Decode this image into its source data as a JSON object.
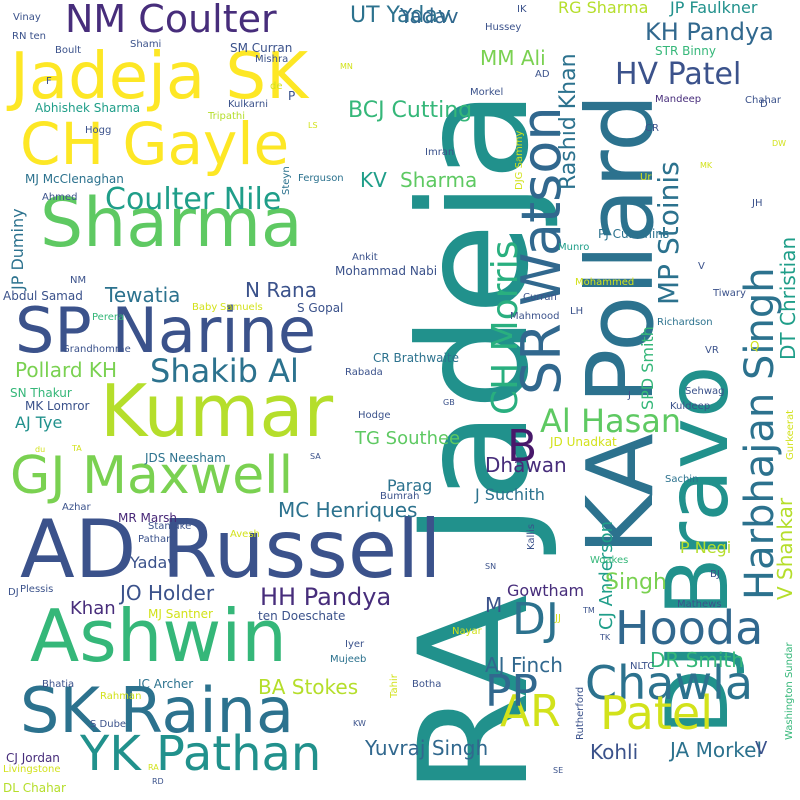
{
  "words": [
    {
      "text": "RA Jadeja",
      "size": 150,
      "color": "#21918c",
      "vertical": true
    },
    {
      "text": "KA Pollard",
      "size": 92,
      "color": "#2c728e",
      "vertical": true
    },
    {
      "text": "DJ Bravo",
      "size": 86,
      "color": "#21918c",
      "vertical": true
    },
    {
      "text": "AD Russell",
      "size": 80,
      "color": "#3b528b",
      "vertical": false
    },
    {
      "text": "Ashwin",
      "size": 72,
      "color": "#35b779",
      "vertical": false
    },
    {
      "text": "Kumar",
      "size": 72,
      "color": "#b5de2b",
      "vertical": false
    },
    {
      "text": "Sharma",
      "size": 68,
      "color": "#5ec962",
      "vertical": false
    },
    {
      "text": "Jadeja SK",
      "size": 64,
      "color": "#fde725",
      "vertical": false
    },
    {
      "text": "SP Narine",
      "size": 62,
      "color": "#3b528b",
      "vertical": false
    },
    {
      "text": "SK Raina",
      "size": 62,
      "color": "#2c728e",
      "vertical": false
    },
    {
      "text": "CH Gayle",
      "size": 58,
      "color": "#fde725",
      "vertical": false
    },
    {
      "text": "GJ Maxwell",
      "size": 52,
      "color": "#7ad151",
      "vertical": false
    },
    {
      "text": "SR Watson",
      "size": 54,
      "color": "#31688e",
      "vertical": true
    },
    {
      "text": "Harbhajan Singh",
      "size": 40,
      "color": "#2c728e",
      "vertical": true
    },
    {
      "text": "YK Pathan",
      "size": 48,
      "color": "#21918c",
      "vertical": false
    },
    {
      "text": "Chawla",
      "size": 46,
      "color": "#2c728e",
      "vertical": false
    },
    {
      "text": "Hooda",
      "size": 46,
      "color": "#31688e",
      "vertical": false
    },
    {
      "text": "Patel",
      "size": 46,
      "color": "#d2e21b",
      "vertical": false
    },
    {
      "text": "AR",
      "size": 44,
      "color": "#d2e21b",
      "vertical": false
    },
    {
      "text": "PP",
      "size": 44,
      "color": "#31688e",
      "vertical": false
    },
    {
      "text": "DJ",
      "size": 44,
      "color": "#2c728e",
      "vertical": false
    },
    {
      "text": "B",
      "size": 44,
      "color": "#48186a",
      "vertical": false
    },
    {
      "text": "NM Coulter",
      "size": 38,
      "color": "#472d7b",
      "vertical": false
    },
    {
      "text": "CH Morris",
      "size": 36,
      "color": "#29af7f",
      "vertical": true
    },
    {
      "text": "Shakib Al",
      "size": 32,
      "color": "#2c728e",
      "vertical": false
    },
    {
      "text": "Al Hasan",
      "size": 32,
      "color": "#5ec962",
      "vertical": false
    },
    {
      "text": "Coulter Nile",
      "size": 30,
      "color": "#1f9e89",
      "vertical": false
    },
    {
      "text": "HV Patel",
      "size": 30,
      "color": "#3b528b",
      "vertical": false
    },
    {
      "text": "MP Stoinis",
      "size": 28,
      "color": "#2c728e",
      "vertical": true
    },
    {
      "text": "Rashid Khan",
      "size": 22,
      "color": "#2c728e",
      "vertical": true
    },
    {
      "text": "DT Christian",
      "size": 20,
      "color": "#1f9e89",
      "vertical": true
    },
    {
      "text": "V Shankar",
      "size": 20,
      "color": "#b5de2b",
      "vertical": true
    },
    {
      "text": "CJ Anderson",
      "size": 18,
      "color": "#1f9e89",
      "vertical": true
    },
    {
      "text": "SPD Smith",
      "size": 16,
      "color": "#35b779",
      "vertical": true
    },
    {
      "text": "JP Duminy",
      "size": 16,
      "color": "#2c728e",
      "vertical": true
    },
    {
      "text": "KH Pandya",
      "size": 24,
      "color": "#31688e",
      "vertical": false
    },
    {
      "text": "HH Pandya",
      "size": 24,
      "color": "#472d7b",
      "vertical": false
    },
    {
      "text": "Pollard KH",
      "size": 20,
      "color": "#7ad151",
      "vertical": false
    },
    {
      "text": "UT Yadav",
      "size": 22,
      "color": "#2c728e",
      "vertical": false
    },
    {
      "text": "BCJ Cutting",
      "size": 22,
      "color": "#35b779",
      "vertical": false
    },
    {
      "text": "Tewatia",
      "size": 20,
      "color": "#2c728e",
      "vertical": false
    },
    {
      "text": "N Rana",
      "size": 20,
      "color": "#3b528b",
      "vertical": false
    },
    {
      "text": "Singh",
      "size": 22,
      "color": "#7ad151",
      "vertical": false
    },
    {
      "text": "MM Ali",
      "size": 20,
      "color": "#7ad151",
      "vertical": false
    },
    {
      "text": "KV",
      "size": 20,
      "color": "#1f9e89",
      "vertical": false
    },
    {
      "text": "Sharma",
      "size": 20,
      "color": "#5ec962",
      "vertical": false
    },
    {
      "text": "MC Henriques",
      "size": 20,
      "color": "#2c728e",
      "vertical": false
    },
    {
      "text": "JO Holder",
      "size": 20,
      "color": "#3b528b",
      "vertical": false
    },
    {
      "text": "Dhawan",
      "size": 20,
      "color": "#472d7b",
      "vertical": false
    },
    {
      "text": "BA Stokes",
      "size": 20,
      "color": "#b5de2b",
      "vertical": false
    },
    {
      "text": "DR Smith",
      "size": 20,
      "color": "#35b779",
      "vertical": false
    },
    {
      "text": "AJ Finch",
      "size": 20,
      "color": "#31688e",
      "vertical": false
    },
    {
      "text": "Yuvraj Singh",
      "size": 20,
      "color": "#31688e",
      "vertical": false
    },
    {
      "text": "Kohli",
      "size": 20,
      "color": "#3b528b",
      "vertical": false
    },
    {
      "text": "JA Morkel",
      "size": 20,
      "color": "#2c728e",
      "vertical": false
    },
    {
      "text": "TG Southee",
      "size": 18,
      "color": "#5ec962",
      "vertical": false
    },
    {
      "text": "JP Faulkner",
      "size": 16,
      "color": "#21918c",
      "vertical": false
    },
    {
      "text": "RG Sharma",
      "size": 16,
      "color": "#b5de2b",
      "vertical": false
    },
    {
      "text": "AJ Tye",
      "size": 16,
      "color": "#21918c",
      "vertical": false
    },
    {
      "text": "Khan",
      "size": 18,
      "color": "#472d7b",
      "vertical": false
    },
    {
      "text": "Yadav",
      "size": 16,
      "color": "#3b528b",
      "vertical": false
    },
    {
      "text": "Yadav",
      "size": 20,
      "color": "#31688e",
      "vertical": false
    },
    {
      "text": "Parag",
      "size": 16,
      "color": "#2c728e",
      "vertical": false
    },
    {
      "text": "J Suchith",
      "size": 16,
      "color": "#2c728e",
      "vertical": false
    },
    {
      "text": "Gowtham",
      "size": 16,
      "color": "#472d7b",
      "vertical": false
    },
    {
      "text": "P Negi",
      "size": 16,
      "color": "#b5de2b",
      "vertical": false
    },
    {
      "text": "M",
      "size": 20,
      "color": "#3b528b",
      "vertical": false
    },
    {
      "text": "V",
      "size": 18,
      "color": "#3b528b",
      "vertical": false
    },
    {
      "text": "Mohammad Nabi",
      "size": 12,
      "color": "#3b528b",
      "vertical": false
    },
    {
      "text": "MJ McClenaghan",
      "size": 12,
      "color": "#2c728e",
      "vertical": false
    },
    {
      "text": "Abhishek Sharma",
      "size": 12,
      "color": "#1f9e89",
      "vertical": false
    },
    {
      "text": "SN Thakur",
      "size": 12,
      "color": "#35b779",
      "vertical": false
    },
    {
      "text": "MK Lomror",
      "size": 12,
      "color": "#3b528b",
      "vertical": false
    },
    {
      "text": "JDS Neesham",
      "size": 12,
      "color": "#2c728e",
      "vertical": false
    },
    {
      "text": "CR Brathwaite",
      "size": 12,
      "color": "#2c728e",
      "vertical": false
    },
    {
      "text": "JD Unadkat",
      "size": 12,
      "color": "#d2e21b",
      "vertical": false
    },
    {
      "text": "PJ Cummins",
      "size": 12,
      "color": "#2c728e",
      "vertical": false
    },
    {
      "text": "SM Curran",
      "size": 12,
      "color": "#3b528b",
      "vertical": false
    },
    {
      "text": "STR Binny",
      "size": 12,
      "color": "#35b779",
      "vertical": false
    },
    {
      "text": "MR Marsh",
      "size": 12,
      "color": "#482878",
      "vertical": false
    },
    {
      "text": "MJ Santner",
      "size": 12,
      "color": "#d2e21b",
      "vertical": false
    },
    {
      "text": "ten Doeschate",
      "size": 12,
      "color": "#3b528b",
      "vertical": false
    },
    {
      "text": "Abdul Samad",
      "size": 12,
      "color": "#3b528b",
      "vertical": false
    },
    {
      "text": "Washington Sundar",
      "size": 10,
      "color": "#35b779",
      "vertical": true
    },
    {
      "text": "CJ Jordan",
      "size": 12,
      "color": "#472d7b",
      "vertical": false
    },
    {
      "text": "DL Chahar",
      "size": 12,
      "color": "#b5de2b",
      "vertical": false
    },
    {
      "text": "JC Archer",
      "size": 12,
      "color": "#2c728e",
      "vertical": false
    },
    {
      "text": "Richardson",
      "size": 10,
      "color": "#2c728e",
      "vertical": false
    },
    {
      "text": "Mohammed",
      "size": 10,
      "color": "#d2e21b",
      "vertical": false
    },
    {
      "text": "Mandeep",
      "size": 10,
      "color": "#472d7b",
      "vertical": false
    },
    {
      "text": "S Gopal",
      "size": 12,
      "color": "#3b528b",
      "vertical": false
    },
    {
      "text": "Baby",
      "size": 10,
      "color": "#d2e21b",
      "vertical": false
    },
    {
      "text": "Samuels",
      "size": 10,
      "color": "#d2e21b",
      "vertical": false
    },
    {
      "text": "Hussey",
      "size": 10,
      "color": "#3b528b",
      "vertical": false
    },
    {
      "text": "Curran",
      "size": 10,
      "color": "#3b528b",
      "vertical": false
    },
    {
      "text": "Mahmood",
      "size": 10,
      "color": "#3b528b",
      "vertical": false
    },
    {
      "text": "Morkel",
      "size": 10,
      "color": "#3b528b",
      "vertical": false
    },
    {
      "text": "Mishra",
      "size": 10,
      "color": "#3b528b",
      "vertical": false
    },
    {
      "text": "Kulkarni",
      "size": 10,
      "color": "#3b528b",
      "vertical": false
    },
    {
      "text": "Tripathi",
      "size": 10,
      "color": "#b5de2b",
      "vertical": false
    },
    {
      "text": "Ferguson",
      "size": 10,
      "color": "#2c728e",
      "vertical": false
    },
    {
      "text": "Imran",
      "size": 10,
      "color": "#3b528b",
      "vertical": false
    },
    {
      "text": "Grandhomme",
      "size": 10,
      "color": "#3b528b",
      "vertical": false
    },
    {
      "text": "Perera",
      "size": 10,
      "color": "#35b779",
      "vertical": false
    },
    {
      "text": "Rabada",
      "size": 10,
      "color": "#3b528b",
      "vertical": false
    },
    {
      "text": "Hodge",
      "size": 10,
      "color": "#3b528b",
      "vertical": false
    },
    {
      "text": "Bumrah",
      "size": 10,
      "color": "#3b528b",
      "vertical": false
    },
    {
      "text": "Avesh",
      "size": 10,
      "color": "#d2e21b",
      "vertical": false
    },
    {
      "text": "Stanlake",
      "size": 10,
      "color": "#3b528b",
      "vertical": false
    },
    {
      "text": "Pathan",
      "size": 10,
      "color": "#3b528b",
      "vertical": false
    },
    {
      "text": "Kallis",
      "size": 10,
      "color": "#3b528b",
      "vertical": true
    },
    {
      "text": "Woakes",
      "size": 10,
      "color": "#35b779",
      "vertical": false
    },
    {
      "text": "Mathews",
      "size": 10,
      "color": "#3b528b",
      "vertical": false
    },
    {
      "text": "Sachin",
      "size": 10,
      "color": "#2c728e",
      "vertical": false
    },
    {
      "text": "Kuldeep",
      "size": 10,
      "color": "#3b528b",
      "vertical": false
    },
    {
      "text": "Sehwag",
      "size": 10,
      "color": "#3b528b",
      "vertical": false
    },
    {
      "text": "Gurkeerat",
      "size": 10,
      "color": "#d2e21b",
      "vertical": true
    },
    {
      "text": "Tiwary",
      "size": 10,
      "color": "#3b528b",
      "vertical": false
    },
    {
      "text": "Chahar",
      "size": 10,
      "color": "#3b528b",
      "vertical": false
    },
    {
      "text": "Munro",
      "size": 10,
      "color": "#1f9e89",
      "vertical": false
    },
    {
      "text": "Ankit",
      "size": 10,
      "color": "#3b528b",
      "vertical": false
    },
    {
      "text": "Steyn",
      "size": 10,
      "color": "#2c728e",
      "vertical": true
    },
    {
      "text": "DJG Sammy",
      "size": 10,
      "color": "#d2e21b",
      "vertical": true
    },
    {
      "text": "Iyer",
      "size": 10,
      "color": "#3b528b",
      "vertical": false
    },
    {
      "text": "Mujeeb",
      "size": 10,
      "color": "#2c728e",
      "vertical": false
    },
    {
      "text": "Tahir",
      "size": 10,
      "color": "#d2e21b",
      "vertical": true
    },
    {
      "text": "Nayar",
      "size": 10,
      "color": "#d2e21b",
      "vertical": false
    },
    {
      "text": "Botha",
      "size": 10,
      "color": "#3b528b",
      "vertical": false
    },
    {
      "text": "Rutherford",
      "size": 10,
      "color": "#3b528b",
      "vertical": true
    },
    {
      "text": "NLTC",
      "size": 10,
      "color": "#3b528b",
      "vertical": false
    },
    {
      "text": "Bhatia",
      "size": 10,
      "color": "#3b528b",
      "vertical": false
    },
    {
      "text": "Rahman",
      "size": 10,
      "color": "#d2e21b",
      "vertical": false
    },
    {
      "text": "S Dube",
      "size": 10,
      "color": "#3b528b",
      "vertical": false
    },
    {
      "text": "Livingstone",
      "size": 10,
      "color": "#d2e21b",
      "vertical": false
    },
    {
      "text": "Plessis",
      "size": 10,
      "color": "#3b528b",
      "vertical": false
    },
    {
      "text": "Azhar",
      "size": 10,
      "color": "#3b528b",
      "vertical": false
    },
    {
      "text": "Vinay",
      "size": 10,
      "color": "#3b528b",
      "vertical": false
    },
    {
      "text": "RN ten",
      "size": 10,
      "color": "#3b528b",
      "vertical": false
    },
    {
      "text": "Boult",
      "size": 10,
      "color": "#3b528b",
      "vertical": false
    },
    {
      "text": "Shami",
      "size": 10,
      "color": "#3b528b",
      "vertical": false
    },
    {
      "text": "Hogg",
      "size": 10,
      "color": "#3b528b",
      "vertical": false
    },
    {
      "text": "Ahmed",
      "size": 10,
      "color": "#3b528b",
      "vertical": false
    },
    {
      "text": "NM",
      "size": 10,
      "color": "#3b528b",
      "vertical": false
    },
    {
      "text": "IK",
      "size": 10,
      "color": "#3b528b",
      "vertical": false
    },
    {
      "text": "AD",
      "size": 10,
      "color": "#3b528b",
      "vertical": false
    },
    {
      "text": "MN",
      "size": 8,
      "color": "#d2e21b",
      "vertical": false
    },
    {
      "text": "LS",
      "size": 8,
      "color": "#d2e21b",
      "vertical": false
    },
    {
      "text": "CR",
      "size": 10,
      "color": "#3b528b",
      "vertical": false
    },
    {
      "text": "Ur",
      "size": 10,
      "color": "#d2e21b",
      "vertical": false
    },
    {
      "text": "MK",
      "size": 8,
      "color": "#d2e21b",
      "vertical": false
    },
    {
      "text": "DW",
      "size": 8,
      "color": "#d2e21b",
      "vertical": false
    },
    {
      "text": "JH",
      "size": 10,
      "color": "#3b528b",
      "vertical": false
    },
    {
      "text": "VR",
      "size": 10,
      "color": "#3b528b",
      "vertical": false
    },
    {
      "text": "BJ",
      "size": 10,
      "color": "#3b528b",
      "vertical": false
    },
    {
      "text": "TM",
      "size": 8,
      "color": "#3b528b",
      "vertical": false
    },
    {
      "text": "JJ",
      "size": 10,
      "color": "#d2e21b",
      "vertical": false
    },
    {
      "text": "TK",
      "size": 8,
      "color": "#3b528b",
      "vertical": false
    },
    {
      "text": "KW",
      "size": 8,
      "color": "#3b528b",
      "vertical": false
    },
    {
      "text": "SE",
      "size": 8,
      "color": "#3b528b",
      "vertical": false
    },
    {
      "text": "SN",
      "size": 8,
      "color": "#3b528b",
      "vertical": false
    },
    {
      "text": "GB",
      "size": 8,
      "color": "#3b528b",
      "vertical": false
    },
    {
      "text": "SA",
      "size": 8,
      "color": "#3b528b",
      "vertical": false
    },
    {
      "text": "RA",
      "size": 8,
      "color": "#d2e21b",
      "vertical": false
    },
    {
      "text": "RD",
      "size": 8,
      "color": "#3b528b",
      "vertical": false
    },
    {
      "text": "TA",
      "size": 8,
      "color": "#d2e21b",
      "vertical": false
    },
    {
      "text": "du",
      "size": 8,
      "color": "#d2e21b",
      "vertical": false
    },
    {
      "text": "DJ",
      "size": 10,
      "color": "#3b528b",
      "vertical": false
    },
    {
      "text": "LH",
      "size": 10,
      "color": "#3b528b",
      "vertical": false
    },
    {
      "text": "F",
      "size": 10,
      "color": "#3b528b",
      "vertical": false
    },
    {
      "text": "P",
      "size": 12,
      "color": "#3b528b",
      "vertical": false
    },
    {
      "text": "D",
      "size": 10,
      "color": "#3b528b",
      "vertical": false
    },
    {
      "text": "V",
      "size": 10,
      "color": "#3b528b",
      "vertical": false
    },
    {
      "text": "J",
      "size": 10,
      "color": "#3b528b",
      "vertical": false
    },
    {
      "text": "de",
      "size": 10,
      "color": "#d2e21b",
      "vertical": false
    },
    {
      "text": "Q",
      "size": 12,
      "color": "#d2e21b",
      "vertical": false
    }
  ]
}
